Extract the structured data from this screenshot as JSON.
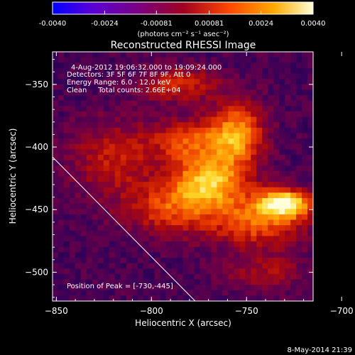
{
  "chart_data": {
    "type": "heatmap",
    "title": "Reconstructed RHESSI Image",
    "colorbar": {
      "ticks": [
        "-0.0040",
        "-0.0024",
        "-0.00081",
        "0.00081",
        "0.0024",
        "0.0040"
      ],
      "range": [
        -0.004,
        0.004
      ],
      "unit_label": "(photons cm⁻² s⁻¹ asec⁻²)"
    },
    "xlabel": "Heliocentric X (arcsec)",
    "ylabel": "Heliocentric Y (arcsec)",
    "xlim": [
      -852,
      -715
    ],
    "ylim": [
      -523,
      -324
    ],
    "x_ticks": [
      -850,
      -800,
      -750,
      -700
    ],
    "y_ticks": [
      -350,
      -400,
      -450,
      -500
    ],
    "annotations": [
      "4-Aug-2012 19:06:32.000 to 19:09:24.000",
      "Detectors: 3F 5F 6F 7F 8F 9F, Att 0",
      "Energy Range: 6.0 - 12.0 keV",
      "Clean     Total counts: 2.66E+04"
    ],
    "peak_label": "Position of Peak = [-730,-445]",
    "peak": [
      -730,
      -445
    ],
    "limb_line": [
      [
        -852,
        -408
      ],
      [
        -777,
        -523
      ]
    ],
    "sources": [
      {
        "x": -730,
        "y": -445,
        "sx": 10,
        "sy": 8,
        "amp": 1.0
      },
      {
        "x": -770,
        "y": -428,
        "sx": 14,
        "sy": 14,
        "amp": 0.85
      },
      {
        "x": -755,
        "y": -390,
        "sx": 10,
        "sy": 18,
        "amp": 0.75
      },
      {
        "x": -780,
        "y": -395,
        "sx": 14,
        "sy": 12,
        "amp": 0.55
      },
      {
        "x": -785,
        "y": -350,
        "sx": 14,
        "sy": 10,
        "amp": 0.45
      },
      {
        "x": -745,
        "y": -460,
        "sx": 18,
        "sy": 14,
        "amp": 0.6
      },
      {
        "x": -790,
        "y": -450,
        "sx": 16,
        "sy": 14,
        "amp": 0.5
      },
      {
        "x": -820,
        "y": -410,
        "sx": 16,
        "sy": 22,
        "amp": 0.4
      },
      {
        "x": -740,
        "y": -500,
        "sx": 16,
        "sy": 10,
        "amp": 0.3
      }
    ],
    "grid": false
  },
  "footer": {
    "timestamp": "8-May-2014 21:39"
  }
}
